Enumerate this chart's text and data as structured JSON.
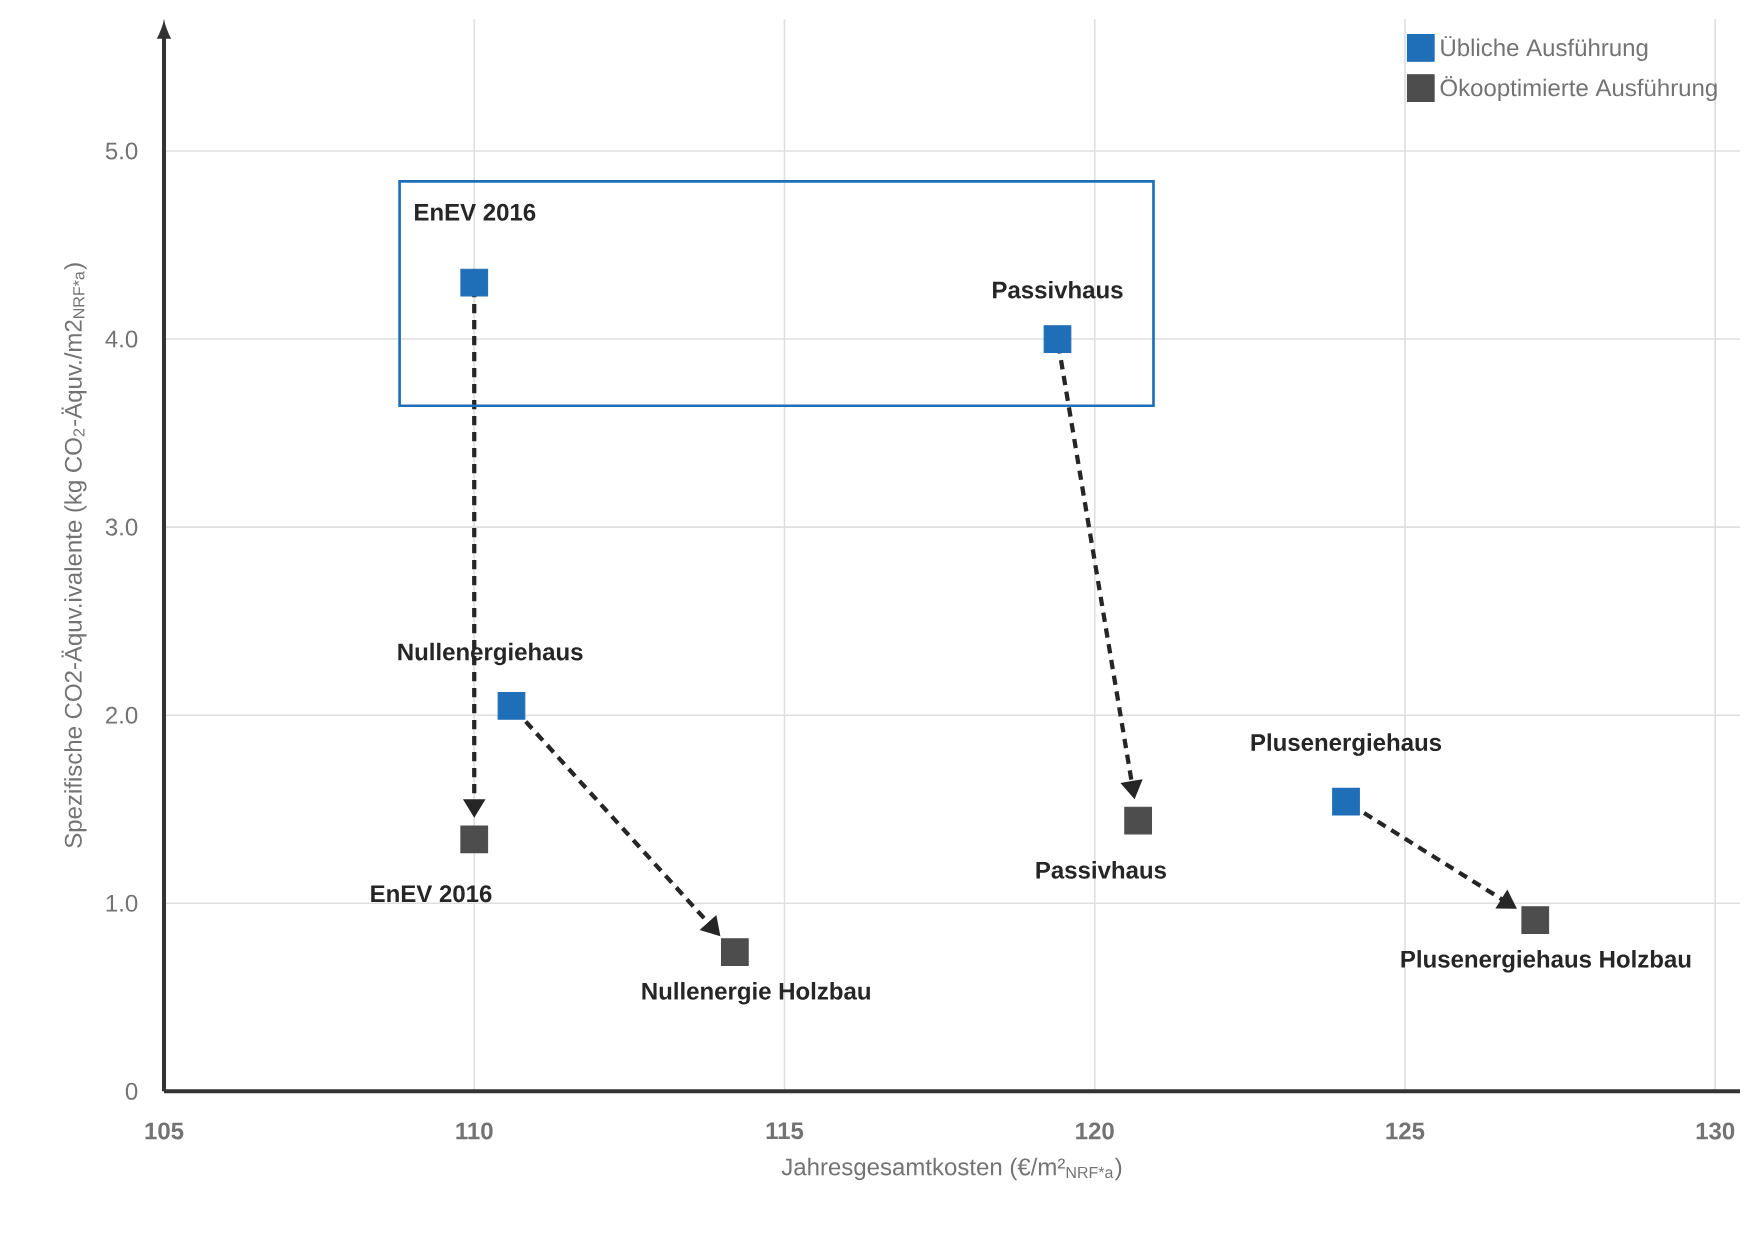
{
  "chart_data": {
    "type": "scatter",
    "xlabel": "Jahresgesamtkosten (€/m²$_{NRF*a}$)",
    "ylabel": "Spezifische CO2-Äquv.ivalente (kg CO$_{2}$-Äquv./m2$_{NRF*a}$)",
    "xlim": [
      105,
      130.4
    ],
    "ylim": [
      0,
      5.7
    ],
    "xticks": [
      105,
      110,
      115,
      120,
      125,
      130
    ],
    "yticks": [
      {
        "value": 0,
        "label": "0"
      },
      {
        "value": 1,
        "label": "1.0"
      },
      {
        "value": 2,
        "label": "2.0"
      },
      {
        "value": 3,
        "label": "3.0"
      },
      {
        "value": 4,
        "label": "4.0"
      },
      {
        "value": 5,
        "label": "5.0"
      }
    ],
    "grid": true,
    "legend": "top right",
    "marker": "square",
    "series": [
      {
        "name": "Übliche Ausführung",
        "color": "#1f6fb8",
        "x": [
          110,
          110.6,
          119.4,
          124.05
        ],
        "values": [
          4.3,
          2.05,
          4.0,
          1.54
        ]
      },
      {
        "name": "Ökooptimierte Ausführung",
        "color": "#4d4d4d",
        "x": [
          110,
          114.2,
          120.7,
          127.1
        ],
        "values": [
          1.34,
          0.74,
          1.44,
          0.91
        ]
      }
    ],
    "annotations": [
      {
        "text": "EnEV 2016",
        "x": 110,
        "y": 4.3
      },
      {
        "text": "Nullenergiehaus",
        "x": 110.6,
        "y": 2.05
      },
      {
        "text": "Passivhaus",
        "x": 119.4,
        "y": 4.0
      },
      {
        "text": "Plusenergiehaus",
        "x": 124.05,
        "y": 1.54
      },
      {
        "text": "EnEV 2016",
        "x": 110,
        "y": 1.34
      },
      {
        "text": "Nullenergie Holzbau",
        "x": 114.2,
        "y": 0.74
      },
      {
        "text": "Passivhaus",
        "x": 120.7,
        "y": 1.44
      },
      {
        "text": "Plusenergiehaus Holzbau",
        "x": 127.1,
        "y": 0.91
      }
    ]
  }
}
